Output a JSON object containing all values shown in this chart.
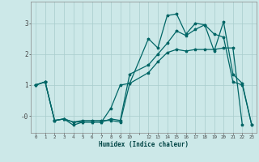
{
  "title": "",
  "xlabel": "Humidex (Indice chaleur)",
  "bg_color": "#cce8e8",
  "grid_color": "#a8cccc",
  "line_color": "#006666",
  "line1_x": [
    0,
    1,
    2,
    3,
    4,
    5,
    6,
    7,
    8,
    9,
    10,
    12,
    13,
    14,
    15,
    16,
    17,
    18,
    19,
    20,
    21,
    22
  ],
  "line1_y": [
    1.0,
    1.1,
    -0.15,
    -0.1,
    -0.2,
    -0.15,
    -0.15,
    -0.15,
    -0.15,
    -0.2,
    1.05,
    1.4,
    1.75,
    2.05,
    2.15,
    2.1,
    2.15,
    2.15,
    2.15,
    2.2,
    2.2,
    -0.3
  ],
  "line2_x": [
    0,
    1,
    2,
    3,
    4,
    5,
    6,
    7,
    8,
    9,
    10,
    12,
    13,
    14,
    15,
    16,
    17,
    18,
    19,
    20,
    21,
    22,
    23
  ],
  "line2_y": [
    1.0,
    1.1,
    -0.15,
    -0.1,
    -0.3,
    -0.2,
    -0.2,
    -0.2,
    0.25,
    1.0,
    1.05,
    2.5,
    2.2,
    3.25,
    3.3,
    2.65,
    3.0,
    2.95,
    2.1,
    3.05,
    1.35,
    1.05,
    -0.3
  ],
  "line3_x": [
    0,
    1,
    2,
    3,
    4,
    5,
    6,
    7,
    8,
    9,
    10,
    12,
    13,
    14,
    15,
    16,
    17,
    18,
    19,
    20,
    21,
    22,
    23
  ],
  "line3_y": [
    1.0,
    1.1,
    -0.15,
    -0.1,
    -0.2,
    -0.2,
    -0.2,
    -0.2,
    -0.1,
    -0.15,
    1.35,
    1.65,
    2.0,
    2.35,
    2.75,
    2.6,
    2.8,
    2.95,
    2.65,
    2.55,
    1.1,
    1.0,
    -0.3
  ],
  "ytick_vals": [
    0,
    1,
    2,
    3
  ],
  "ytick_labels": [
    "-0",
    "1",
    "2",
    "3"
  ],
  "ylim": [
    -0.55,
    3.7
  ],
  "xlim": [
    -0.5,
    23.5
  ]
}
